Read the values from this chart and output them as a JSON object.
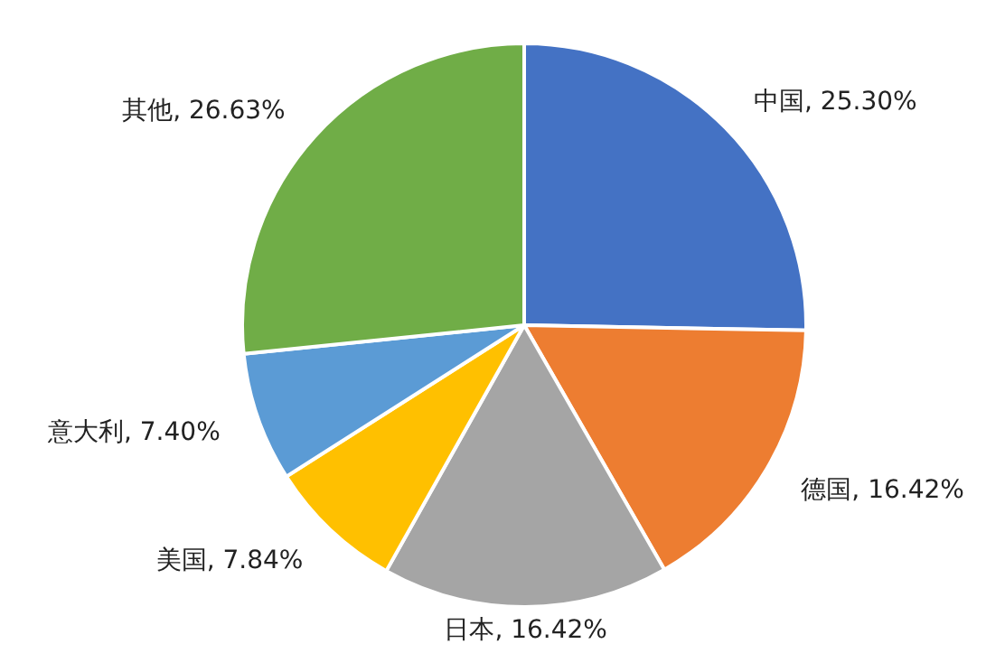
{
  "chart_data": {
    "type": "pie",
    "categories": [
      "中国",
      "德国",
      "日本",
      "美国",
      "意大利",
      "其他"
    ],
    "values": [
      25.3,
      16.42,
      16.42,
      7.84,
      7.4,
      26.63
    ],
    "value_labels": [
      "25.30%",
      "16.42%",
      "16.42%",
      "7.84%",
      "7.40%",
      "26.63%"
    ],
    "colors": [
      "#4472c4",
      "#ed7d31",
      "#a5a5a5",
      "#ffc000",
      "#5b9bd5",
      "#70ad47"
    ]
  }
}
